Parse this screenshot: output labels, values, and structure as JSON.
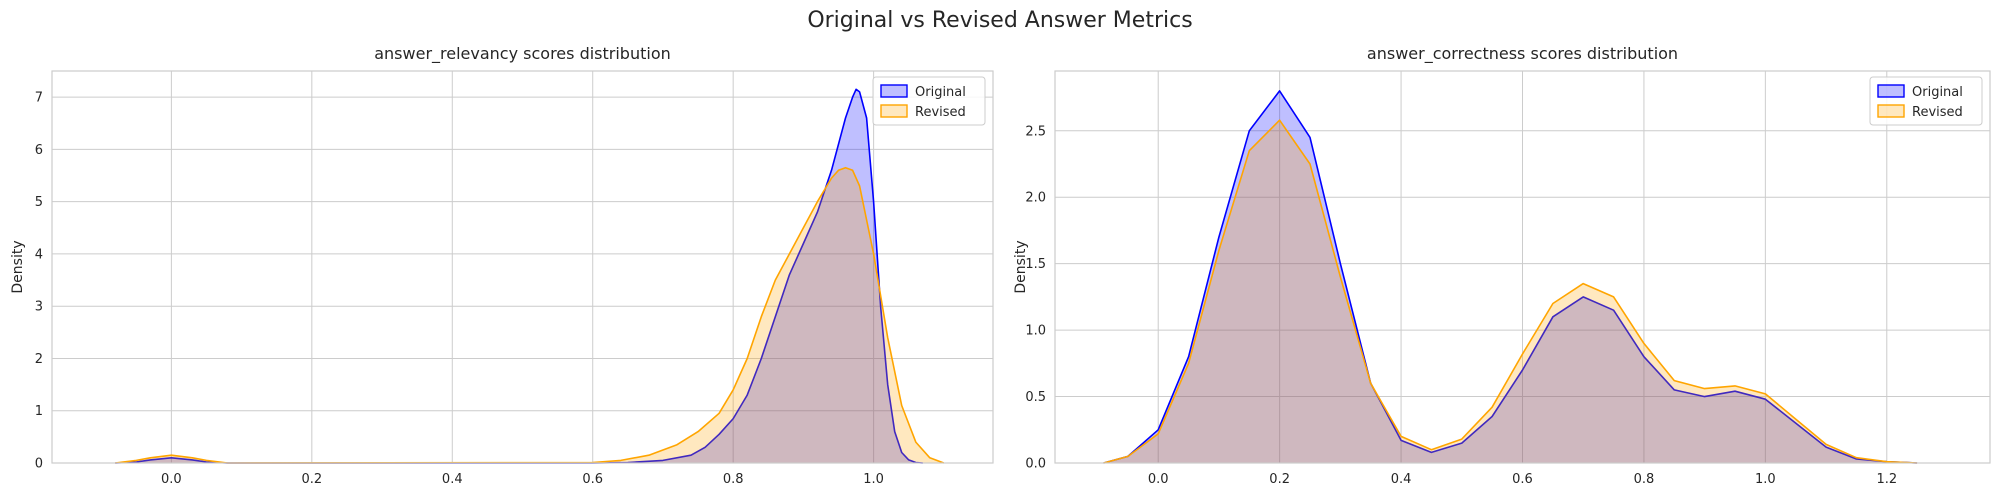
{
  "figure": {
    "suptitle": "Original vs Revised Answer Metrics"
  },
  "chart_data": [
    {
      "type": "area",
      "title": "answer_relevancy scores distribution",
      "xlabel": "",
      "ylabel": "Density",
      "xlim": [
        -0.17,
        1.17
      ],
      "ylim": [
        0,
        7.5
      ],
      "xticks": [
        0.0,
        0.2,
        0.4,
        0.6,
        0.8,
        1.0
      ],
      "xtick_labels": [
        "0.0",
        "0.2",
        "0.4",
        "0.6",
        "0.8",
        "1.0"
      ],
      "yticks": [
        0,
        1,
        2,
        3,
        4,
        5,
        6,
        7
      ],
      "ytick_labels": [
        "0",
        "1",
        "2",
        "3",
        "4",
        "5",
        "6",
        "7"
      ],
      "grid": true,
      "legend_position": "top-right",
      "series": [
        {
          "name": "Original",
          "color": "#0000ff",
          "fill": "#0000ff",
          "x": [
            -0.08,
            -0.05,
            -0.03,
            0.0,
            0.03,
            0.05,
            0.08,
            0.6,
            0.65,
            0.7,
            0.74,
            0.76,
            0.78,
            0.8,
            0.82,
            0.84,
            0.86,
            0.88,
            0.9,
            0.92,
            0.94,
            0.95,
            0.96,
            0.97,
            0.975,
            0.98,
            0.99,
            1.0,
            1.01,
            1.02,
            1.03,
            1.04,
            1.05,
            1.06,
            1.07
          ],
          "y": [
            0,
            0.02,
            0.06,
            0.1,
            0.06,
            0.02,
            0,
            0,
            0.01,
            0.05,
            0.15,
            0.3,
            0.55,
            0.85,
            1.3,
            2.0,
            2.8,
            3.6,
            4.2,
            4.8,
            5.6,
            6.1,
            6.6,
            7.0,
            7.15,
            7.1,
            6.6,
            5.0,
            3.0,
            1.5,
            0.6,
            0.2,
            0.06,
            0.01,
            0
          ]
        },
        {
          "name": "Revised",
          "color": "#ffa500",
          "fill": "#ffa500",
          "x": [
            -0.08,
            -0.05,
            -0.03,
            0.0,
            0.03,
            0.05,
            0.08,
            0.6,
            0.64,
            0.68,
            0.72,
            0.75,
            0.78,
            0.8,
            0.82,
            0.84,
            0.86,
            0.88,
            0.9,
            0.92,
            0.94,
            0.95,
            0.96,
            0.97,
            0.98,
            1.0,
            1.02,
            1.04,
            1.06,
            1.08,
            1.1
          ],
          "y": [
            0,
            0.05,
            0.1,
            0.15,
            0.1,
            0.05,
            0,
            0.01,
            0.05,
            0.15,
            0.35,
            0.6,
            0.95,
            1.4,
            2.0,
            2.8,
            3.5,
            4.0,
            4.5,
            5.0,
            5.45,
            5.6,
            5.65,
            5.6,
            5.3,
            4.0,
            2.4,
            1.1,
            0.4,
            0.1,
            0
          ]
        }
      ]
    },
    {
      "type": "area",
      "title": "answer_correctness scores distribution",
      "xlabel": "",
      "ylabel": "Density",
      "xlim": [
        -0.17,
        1.37
      ],
      "ylim": [
        0,
        2.95
      ],
      "xticks": [
        0.0,
        0.2,
        0.4,
        0.6,
        0.8,
        1.0,
        1.2
      ],
      "xtick_labels": [
        "0.0",
        "0.2",
        "0.4",
        "0.6",
        "0.8",
        "1.0",
        "1.2"
      ],
      "yticks": [
        0,
        0.5,
        1.0,
        1.5,
        2.0,
        2.5
      ],
      "ytick_labels": [
        "0.0",
        "0.5",
        "1.0",
        "1.5",
        "2.0",
        "2.5"
      ],
      "grid": true,
      "legend_position": "top-right",
      "series": [
        {
          "name": "Original",
          "color": "#0000ff",
          "fill": "#0000ff",
          "x": [
            -0.09,
            -0.05,
            0.0,
            0.05,
            0.1,
            0.15,
            0.2,
            0.25,
            0.3,
            0.35,
            0.4,
            0.45,
            0.5,
            0.55,
            0.6,
            0.65,
            0.7,
            0.75,
            0.8,
            0.85,
            0.9,
            0.95,
            1.0,
            1.05,
            1.1,
            1.15,
            1.2,
            1.25
          ],
          "y": [
            0,
            0.05,
            0.25,
            0.8,
            1.7,
            2.5,
            2.8,
            2.45,
            1.5,
            0.6,
            0.17,
            0.08,
            0.15,
            0.35,
            0.7,
            1.1,
            1.25,
            1.15,
            0.8,
            0.55,
            0.5,
            0.54,
            0.48,
            0.3,
            0.12,
            0.03,
            0.01,
            0
          ]
        },
        {
          "name": "Revised",
          "color": "#ffa500",
          "fill": "#ffa500",
          "x": [
            -0.09,
            -0.05,
            0.0,
            0.05,
            0.1,
            0.15,
            0.2,
            0.25,
            0.3,
            0.35,
            0.4,
            0.45,
            0.5,
            0.55,
            0.6,
            0.65,
            0.7,
            0.75,
            0.8,
            0.85,
            0.9,
            0.95,
            1.0,
            1.05,
            1.1,
            1.15,
            1.2,
            1.25
          ],
          "y": [
            0,
            0.05,
            0.22,
            0.75,
            1.6,
            2.35,
            2.58,
            2.25,
            1.4,
            0.6,
            0.2,
            0.1,
            0.18,
            0.42,
            0.82,
            1.2,
            1.35,
            1.25,
            0.9,
            0.62,
            0.56,
            0.58,
            0.52,
            0.33,
            0.14,
            0.04,
            0.01,
            0
          ]
        }
      ]
    }
  ]
}
